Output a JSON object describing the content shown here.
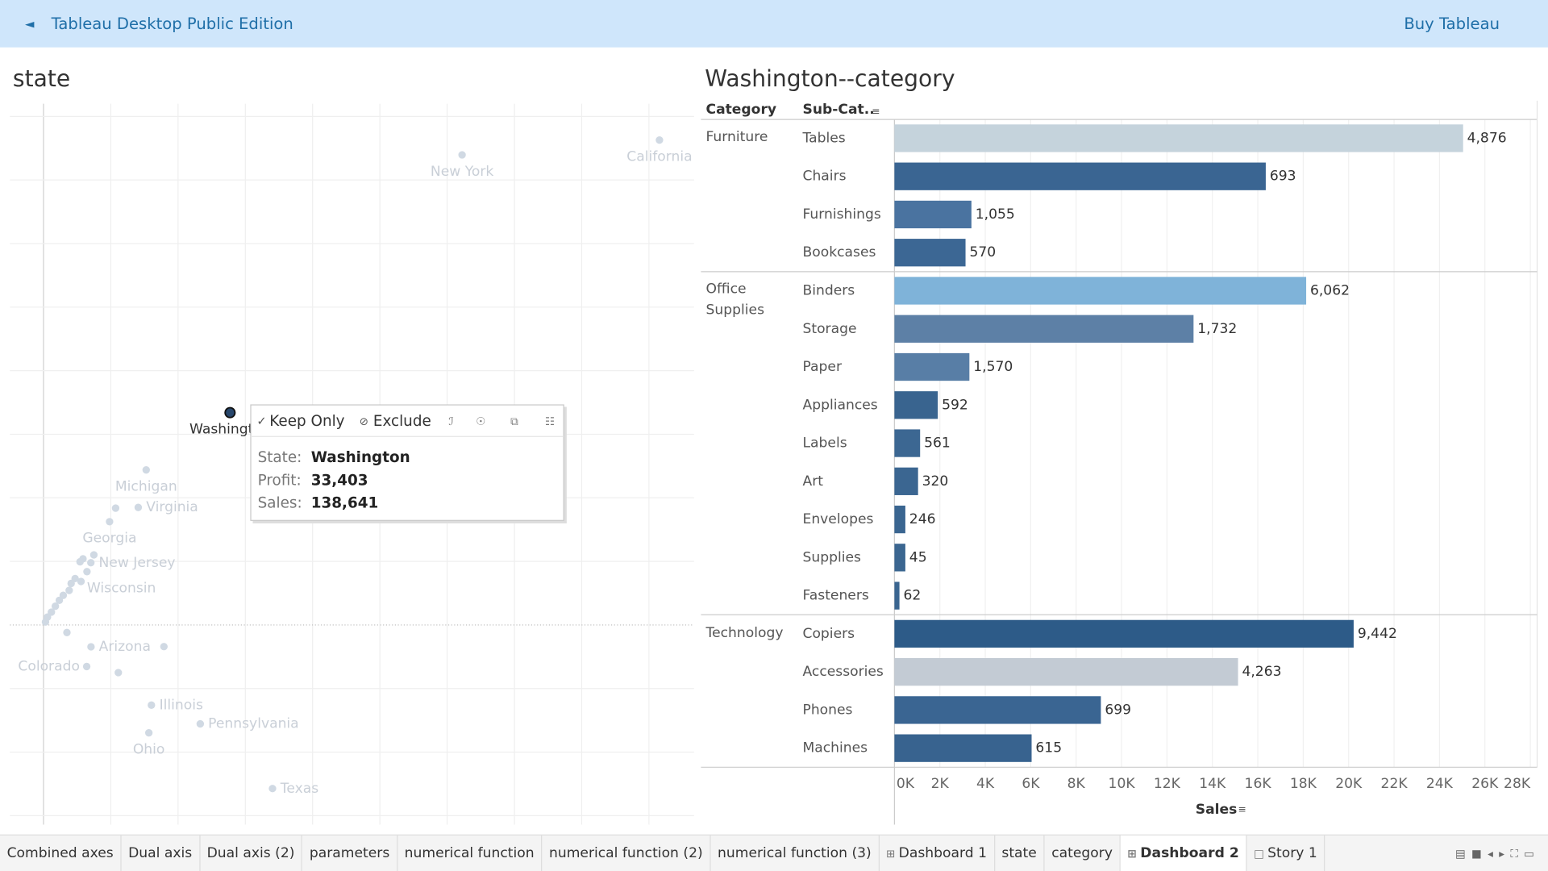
{
  "header": {
    "title": "Tableau Desktop Public Edition",
    "action": "Buy Tableau"
  },
  "chart_data": [
    {
      "type": "scatter",
      "title": "state",
      "labels": [
        "California",
        "New York",
        "Washington",
        "Michigan",
        "Virginia",
        "Georgia",
        "New Jersey",
        "Wisconsin",
        "Arizona",
        "Colorado",
        "Illinois",
        "Pennsylvania",
        "Ohio",
        "Texas",
        null,
        null,
        null,
        null,
        null,
        null,
        null,
        null,
        null,
        null,
        null,
        null,
        null,
        null,
        null,
        null,
        null
      ],
      "x": [
        457800,
        311100,
        138641,
        76300,
        70400,
        49100,
        35200,
        32300,
        35300,
        32100,
        80200,
        116500,
        78300,
        170200,
        53600,
        89500,
        55600,
        17400,
        1470,
        2930,
        5870,
        8800,
        11740,
        14670,
        19080,
        20540,
        23480,
        27880,
        29350,
        37420,
        27150
      ],
      "values": [
        76280,
        73950,
        33403,
        24390,
        18490,
        16250,
        9790,
        8390,
        -3430,
        -6530,
        -12610,
        -15560,
        -16970,
        -25730,
        18380,
        -3400,
        -7490,
        -1190,
        470,
        1240,
        2020,
        2950,
        3880,
        4660,
        5440,
        6530,
        7300,
        6840,
        10410,
        11030,
        9940
      ],
      "xlim": [
        -25000,
        483500
      ],
      "ylim": [
        -31400,
        82000
      ],
      "xticks": [
        0,
        50000,
        100000,
        150000,
        200000,
        250000,
        300000,
        350000,
        400000,
        450000
      ],
      "yticks": [
        -30000,
        -20000,
        -10000,
        0,
        10000,
        20000,
        30000,
        40000,
        50000,
        60000,
        70000,
        80000
      ],
      "color": "#d0d9e3",
      "highlight": 2,
      "highlight_color": "#27466b",
      "grid": true
    },
    {
      "type": "bar",
      "title": "Washington--category",
      "column_headers": [
        "Category",
        "Sub-Cat.."
      ],
      "xlabel": "Sales",
      "groups": [
        {
          "name": "Furniture",
          "categories": [
            "Tables",
            "Chairs",
            "Furnishings",
            "Bookcases"
          ],
          "values": [
            25040,
            16350,
            3390,
            3130
          ],
          "labels": [
            "4,876",
            "693",
            "1,055",
            "570"
          ],
          "colors": [
            "#c5d3dc",
            "#3a6592",
            "#4a73a0",
            "#3c6794"
          ]
        },
        {
          "name": "Office Supplies",
          "categories": [
            "Binders",
            "Storage",
            "Paper",
            "Appliances",
            "Labels",
            "Art",
            "Envelopes",
            "Supplies",
            "Fasteners"
          ],
          "values": [
            18130,
            13170,
            3300,
            1910,
            1130,
            1040,
            480,
            480,
            220
          ],
          "labels": [
            "6,062",
            "1,732",
            "1,570",
            "592",
            "561",
            "320",
            "246",
            "45",
            "62"
          ],
          "colors": [
            "#7fb3d9",
            "#5d80a6",
            "#587ea6",
            "#39648f",
            "#3c6792",
            "#3b6691",
            "#3a6590",
            "#3b6690",
            "#3a6590"
          ]
        },
        {
          "name": "Technology",
          "categories": [
            "Copiers",
            "Accessories",
            "Phones",
            "Machines"
          ],
          "values": [
            20220,
            15130,
            9090,
            6040
          ],
          "labels": [
            "9,442",
            "4,263",
            "699",
            "615"
          ],
          "colors": [
            "#2d5b88",
            "#c3cbd4",
            "#3a6592",
            "#38638f"
          ]
        }
      ],
      "xlim": [
        0,
        28300
      ],
      "xticks": [
        {
          "value": 0,
          "label": "0K"
        },
        {
          "value": 2000,
          "label": "2K"
        },
        {
          "value": 4000,
          "label": "4K"
        },
        {
          "value": 6000,
          "label": "6K"
        },
        {
          "value": 8000,
          "label": "8K"
        },
        {
          "value": 10000,
          "label": "10K"
        },
        {
          "value": 12000,
          "label": "12K"
        },
        {
          "value": 14000,
          "label": "14K"
        },
        {
          "value": 16000,
          "label": "16K"
        },
        {
          "value": 18000,
          "label": "18K"
        },
        {
          "value": 20000,
          "label": "20K"
        },
        {
          "value": 22000,
          "label": "22K"
        },
        {
          "value": 24000,
          "label": "24K"
        },
        {
          "value": 26000,
          "label": "26K"
        },
        {
          "value": 28000,
          "label": "28K"
        }
      ],
      "grid": true
    }
  ],
  "tooltip": {
    "actions": [
      "Keep Only",
      "Exclude"
    ],
    "rows": [
      [
        "State:",
        "Washington"
      ],
      [
        "Profit:",
        "33,403"
      ],
      [
        "Sales:",
        "138,641"
      ]
    ]
  },
  "tabs": [
    "Combined axes",
    "Dual axis",
    "Dual axis (2)",
    "parameters",
    "numerical function",
    "numerical function (2)",
    "numerical function (3)",
    "Dashboard 1",
    "state",
    "category",
    "Dashboard 2",
    "Story 1"
  ],
  "active_tab": 10
}
